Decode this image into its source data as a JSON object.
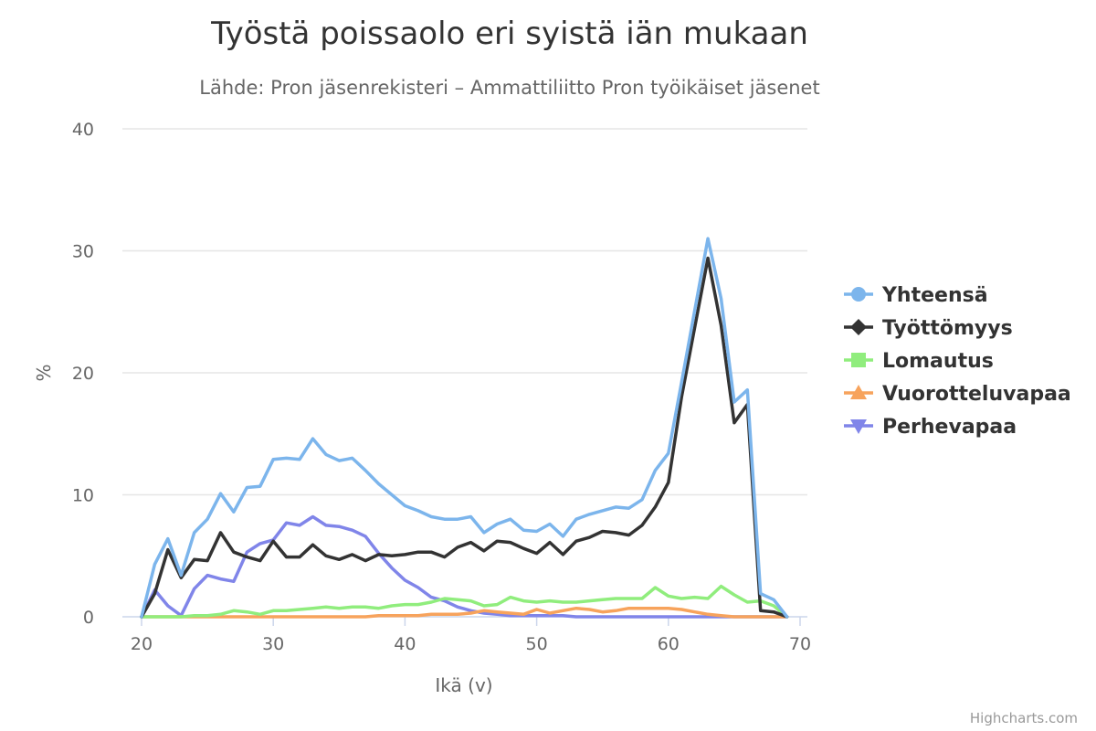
{
  "chart_data": {
    "type": "line",
    "title": "Työstä poissaolo eri syistä iän mukaan",
    "subtitle": "Lähde: Pron jäsenrekisteri – Ammattiliitto Pron työikäiset jäsenet",
    "xlabel": "Ikä (v)",
    "ylabel": "%",
    "xlim": [
      19,
      70
    ],
    "ylim": [
      0,
      40
    ],
    "x_ticks": [
      20,
      30,
      40,
      50,
      60,
      70
    ],
    "y_ticks": [
      0,
      10,
      20,
      30,
      40
    ],
    "grid": true,
    "legend_position": "right",
    "credits": "Highcharts.com",
    "x": [
      20,
      21,
      22,
      23,
      24,
      25,
      26,
      27,
      28,
      29,
      30,
      31,
      32,
      33,
      34,
      35,
      36,
      37,
      38,
      39,
      40,
      41,
      42,
      43,
      44,
      45,
      46,
      47,
      48,
      49,
      50,
      51,
      52,
      53,
      54,
      55,
      56,
      57,
      58,
      59,
      60,
      61,
      62,
      63,
      64,
      65,
      66,
      67,
      68,
      69
    ],
    "series": [
      {
        "name": "Yhteensä",
        "color": "#7cb5ec",
        "marker": "circle",
        "values": [
          0,
          4.3,
          6.4,
          3.4,
          6.9,
          8.0,
          10.1,
          8.6,
          10.6,
          10.7,
          12.9,
          13.0,
          12.9,
          14.6,
          13.3,
          12.8,
          13.0,
          12.0,
          10.9,
          10.0,
          9.1,
          8.7,
          8.2,
          8.0,
          8.0,
          8.2,
          6.9,
          7.6,
          8.0,
          7.1,
          7.0,
          7.6,
          6.6,
          8.0,
          8.4,
          8.7,
          9.0,
          8.9,
          9.6,
          12.0,
          13.4,
          19.2,
          25.1,
          31.0,
          26.1,
          17.6,
          18.6,
          1.9,
          1.4,
          0
        ]
      },
      {
        "name": "Työttömyys",
        "color": "#333333",
        "marker": "diamond",
        "values": [
          0,
          1.9,
          5.5,
          3.2,
          4.7,
          4.6,
          6.9,
          5.3,
          4.9,
          4.6,
          6.2,
          4.9,
          4.9,
          5.9,
          5.0,
          4.7,
          5.1,
          4.6,
          5.1,
          5.0,
          5.1,
          5.3,
          5.3,
          4.9,
          5.7,
          6.1,
          5.4,
          6.2,
          6.1,
          5.6,
          5.2,
          6.1,
          5.1,
          6.2,
          6.5,
          7.0,
          6.9,
          6.7,
          7.5,
          9.0,
          11.0,
          18.0,
          23.7,
          29.4,
          23.9,
          15.9,
          17.4,
          0.5,
          0.4,
          0
        ]
      },
      {
        "name": "Lomautus",
        "color": "#90ed7d",
        "marker": "square",
        "values": [
          0,
          0,
          0,
          0,
          0.1,
          0.1,
          0.2,
          0.5,
          0.4,
          0.2,
          0.5,
          0.5,
          0.6,
          0.7,
          0.8,
          0.7,
          0.8,
          0.8,
          0.7,
          0.9,
          1.0,
          1.0,
          1.2,
          1.5,
          1.4,
          1.3,
          0.9,
          1.0,
          1.6,
          1.3,
          1.2,
          1.3,
          1.2,
          1.2,
          1.3,
          1.4,
          1.5,
          1.5,
          1.5,
          2.4,
          1.7,
          1.5,
          1.6,
          1.5,
          2.5,
          1.8,
          1.2,
          1.3,
          0.9,
          0
        ]
      },
      {
        "name": "Vuorotteluvapaa",
        "color": "#f7a35c",
        "marker": "triangle",
        "values": [
          0,
          0,
          0,
          0,
          0,
          0,
          0,
          0,
          0,
          0,
          0,
          0,
          0,
          0,
          0,
          0,
          0,
          0,
          0.1,
          0.1,
          0.1,
          0.1,
          0.2,
          0.2,
          0.2,
          0.3,
          0.5,
          0.4,
          0.3,
          0.2,
          0.6,
          0.3,
          0.5,
          0.7,
          0.6,
          0.4,
          0.5,
          0.7,
          0.7,
          0.7,
          0.7,
          0.6,
          0.4,
          0.2,
          0.1,
          0,
          0,
          0,
          0,
          0
        ]
      },
      {
        "name": "Perhevapaa",
        "color": "#8085e9",
        "marker": "triangle-down",
        "values": [
          0,
          2.2,
          0.9,
          0.1,
          2.3,
          3.4,
          3.1,
          2.9,
          5.3,
          6.0,
          6.3,
          7.7,
          7.5,
          8.2,
          7.5,
          7.4,
          7.1,
          6.6,
          5.2,
          4.0,
          3.0,
          2.4,
          1.6,
          1.3,
          0.8,
          0.5,
          0.3,
          0.2,
          0.1,
          0.1,
          0.1,
          0.1,
          0.1,
          0,
          0,
          0,
          0,
          0,
          0,
          0,
          0,
          0,
          0,
          0,
          0,
          0,
          0,
          0,
          0,
          0
        ]
      }
    ]
  }
}
